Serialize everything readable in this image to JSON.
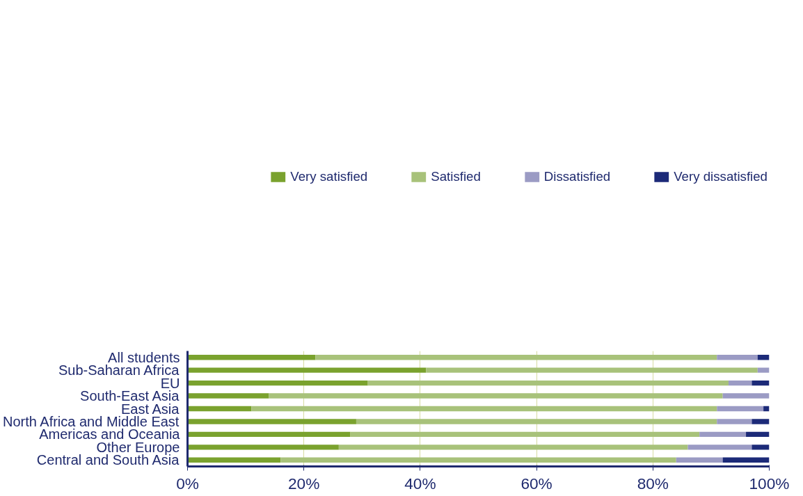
{
  "chart_data": {
    "type": "bar",
    "orientation": "horizontal",
    "stacked": true,
    "categories": [
      "All students",
      "Sub-Saharan Africa",
      "EU",
      "South-East Asia",
      "East Asia",
      "North Africa and Middle East",
      "Americas and Oceania",
      "Other Europe",
      "Central and South Asia"
    ],
    "series": [
      {
        "name": "Very satisfied",
        "color": "#7aa22e",
        "values": [
          22,
          41,
          31,
          14,
          11,
          29,
          28,
          26,
          16
        ]
      },
      {
        "name": "Satisfied",
        "color": "#a8c27a",
        "values": [
          69,
          57,
          62,
          78,
          80,
          62,
          60,
          60,
          68
        ]
      },
      {
        "name": "Dissatisfied",
        "color": "#9b9bc4",
        "values": [
          7,
          2,
          4,
          8,
          8,
          6,
          8,
          11,
          8
        ]
      },
      {
        "name": "Very dissatisfied",
        "color": "#1c2a78",
        "values": [
          2,
          0,
          3,
          0,
          1,
          3,
          4,
          3,
          8
        ]
      }
    ],
    "xlim": [
      0,
      100
    ],
    "xticks": [
      {
        "value": 0,
        "label": "0%"
      },
      {
        "value": 20,
        "label": "20%"
      },
      {
        "value": 40,
        "label": "40%"
      },
      {
        "value": 60,
        "label": "60%"
      },
      {
        "value": 80,
        "label": "80%"
      },
      {
        "value": 100,
        "label": "100%"
      }
    ],
    "grid": "x",
    "legend": "top"
  }
}
